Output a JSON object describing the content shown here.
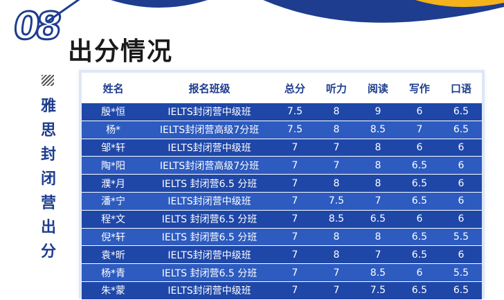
{
  "section": {
    "number": "08",
    "title": "出分情况",
    "vertical_label": [
      "雅",
      "思",
      "封",
      "闭",
      "营",
      "出",
      "分"
    ]
  },
  "table": {
    "headers": [
      "姓名",
      "报名班级",
      "总分",
      "听力",
      "阅读",
      "写作",
      "口语"
    ],
    "rows": [
      [
        "殷*恒",
        "IELTS封闭营中级班",
        "7.5",
        "8",
        "9",
        "6",
        "6.5"
      ],
      [
        "杨*",
        "IELTS封闭营高级7分班",
        "7.5",
        "8",
        "8.5",
        "7",
        "6.5"
      ],
      [
        "邹*轩",
        "IELTS封闭营中级班",
        "7",
        "7",
        "8",
        "6",
        "6"
      ],
      [
        "陶*阳",
        "IELTS封闭营高级7分班",
        "7",
        "7",
        "8",
        "6.5",
        "6"
      ],
      [
        "濮*月",
        "IELTS 封闭营6.5 分班",
        "7",
        "8",
        "8",
        "6.5",
        "6"
      ],
      [
        "潘*宁",
        "IELTS封闭营中级班",
        "7",
        "7.5",
        "7",
        "6.5",
        "6"
      ],
      [
        "程*文",
        "IELTS 封闭营6.5 分班",
        "7",
        "8.5",
        "6.5",
        "6",
        "6"
      ],
      [
        "倪*轩",
        "IELTS 封闭营6.5 分班",
        "7",
        "8",
        "8",
        "6.5",
        "5.5"
      ],
      [
        "袁*昕",
        "IELTS封闭营中级班",
        "7",
        "8",
        "7",
        "6.5",
        "6"
      ],
      [
        "杨*青",
        "IELTS 封闭营6.5 分班",
        "7",
        "7",
        "8.5",
        "6",
        "5.5"
      ],
      [
        "朱*蒙",
        "IELTS封闭营中级班",
        "7",
        "7",
        "7.5",
        "6.5",
        "6.5"
      ]
    ]
  },
  "colors": {
    "brand_blue": "#1e3d8f",
    "row_dark": "#1f47a8",
    "row_light": "#2d5bbf",
    "accent_yellow": "#f5b21b"
  }
}
